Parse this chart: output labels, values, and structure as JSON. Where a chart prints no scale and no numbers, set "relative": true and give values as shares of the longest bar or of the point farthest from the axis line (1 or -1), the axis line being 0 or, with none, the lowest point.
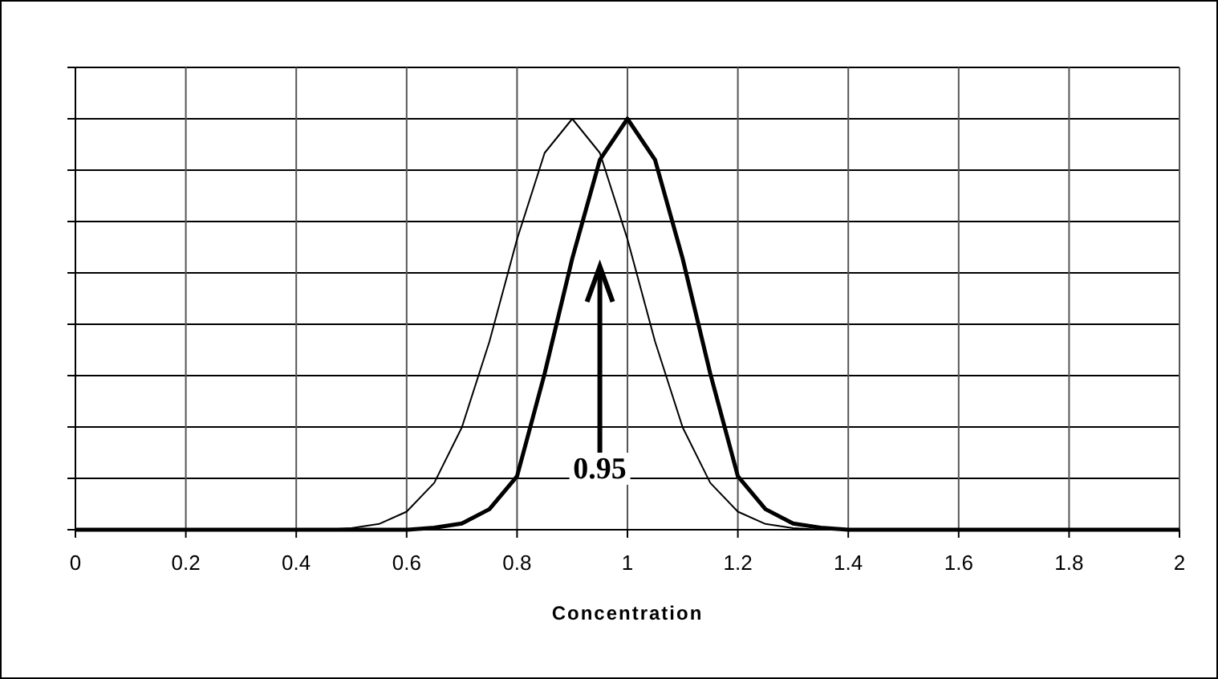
{
  "chart_data": {
    "type": "line",
    "xlabel": "Concentration",
    "relative": true,
    "grid": true,
    "tick_labels": "x",
    "line_style": "solid",
    "xlim": [
      0,
      2
    ],
    "xticks": [
      0,
      0.2,
      0.4,
      0.6,
      0.8,
      1,
      1.2,
      1.4,
      1.6,
      1.8,
      2
    ],
    "annotations": [
      "0.95"
    ],
    "series": [
      {
        "color": "#000000",
        "x": [
          0,
          0.45,
          0.5,
          0.55,
          0.6,
          0.65,
          0.7,
          0.75,
          0.8,
          0.85,
          0.9,
          0.95,
          1,
          1.05,
          1.1,
          1.15,
          1.2,
          1.25,
          1.3,
          1.35,
          2
        ],
        "values": [
          0,
          0,
          0.004,
          0.014,
          0.044,
          0.114,
          0.249,
          0.458,
          0.707,
          0.917,
          1,
          0.917,
          0.707,
          0.458,
          0.249,
          0.114,
          0.044,
          0.014,
          0.004,
          0,
          0
        ]
      },
      {
        "color": "#000000",
        "x": [
          0,
          0.6,
          0.65,
          0.7,
          0.75,
          0.8,
          0.85,
          0.9,
          0.95,
          1,
          1.05,
          1.1,
          1.15,
          1.2,
          1.25,
          1.3,
          1.35,
          1.4,
          2
        ],
        "values": [
          0,
          0,
          0.005,
          0.015,
          0.05,
          0.13,
          0.38,
          0.66,
          0.9,
          1,
          0.9,
          0.66,
          0.38,
          0.13,
          0.05,
          0.015,
          0.005,
          0,
          0
        ]
      }
    ]
  }
}
